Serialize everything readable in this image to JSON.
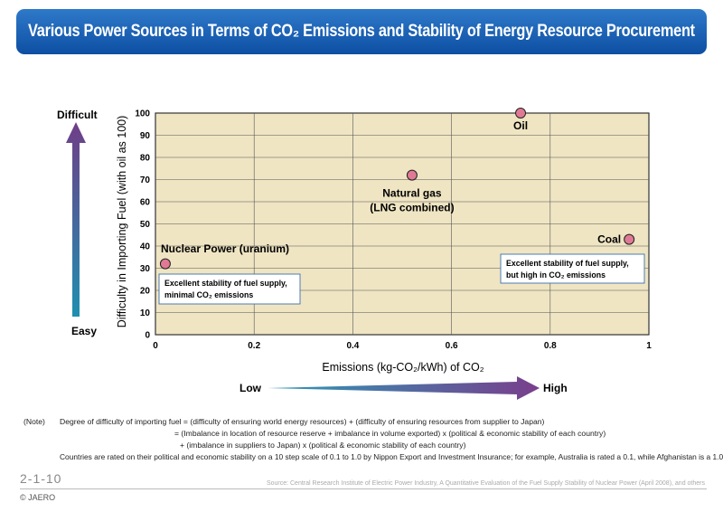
{
  "header": {
    "title": "Various Power Sources in Terms of CO₂ Emissions and Stability of Energy Resource Procurement"
  },
  "chart_data": {
    "type": "scatter",
    "xlabel": "Emissions (kg-CO₂/kWh) of CO₂",
    "ylabel": "Difficulty in Importing Fuel (with oil as 100)",
    "xlim": [
      0,
      1
    ],
    "ylim": [
      0,
      100
    ],
    "x_ticks": [
      "0",
      "0.2",
      "0.4",
      "0.6",
      "0.8",
      "1"
    ],
    "y_ticks": [
      "0",
      "10",
      "20",
      "30",
      "40",
      "50",
      "60",
      "70",
      "80",
      "90",
      "100"
    ],
    "grid": true,
    "points": [
      {
        "label": "Nuclear Power (uranium)",
        "x": 0.02,
        "y": 32
      },
      {
        "label": "Natural gas",
        "label2": "(LNG combined)",
        "x": 0.52,
        "y": 72
      },
      {
        "label": "Oil",
        "x": 0.74,
        "y": 100
      },
      {
        "label": "Coal",
        "x": 0.96,
        "y": 43
      }
    ],
    "annotations": [
      {
        "line1": "Excellent stability of fuel supply,",
        "line2": "minimal CO₂ emissions"
      },
      {
        "line1": "Excellent stability of fuel supply,",
        "line2": "but high in CO₂ emissions"
      }
    ],
    "y_axis_arrow": {
      "top_label": "Difficult",
      "bottom_label": "Easy"
    },
    "x_axis_arrow": {
      "left_label": "Low",
      "right_label": "High"
    },
    "colors": {
      "plot_bg": "#efe5c3",
      "point": "#e07a94",
      "banner": "#1a5fb4"
    }
  },
  "notes": {
    "label": "(Note)",
    "line1": "Degree of difficulty of importing fuel = (difficulty of ensuring world energy resources) + (difficulty of ensuring resources from supplier to Japan)",
    "line2": "= (Imbalance in location of resource reserve + imbalance in volume exported) x (political & economic stability of each country)",
    "line3": "+ (imbalance in suppliers to Japan) x (political & economic stability of each country)",
    "line4": "Countries are rated on their political and economic stability on a 10 step scale of 0.1 to 1.0 by Nippon Export and Investment Insurance; for example, Australia is rated a 0.1, while Afghanistan is a 1.0."
  },
  "footer": {
    "page": "2-1-10",
    "copyright": "© JAERO",
    "source": "Source: Central Research Institute of Electric Power Industry, A Quantitative Evaluation of the Fuel Supply Stability of Nuclear Power (April 2008), and others"
  }
}
